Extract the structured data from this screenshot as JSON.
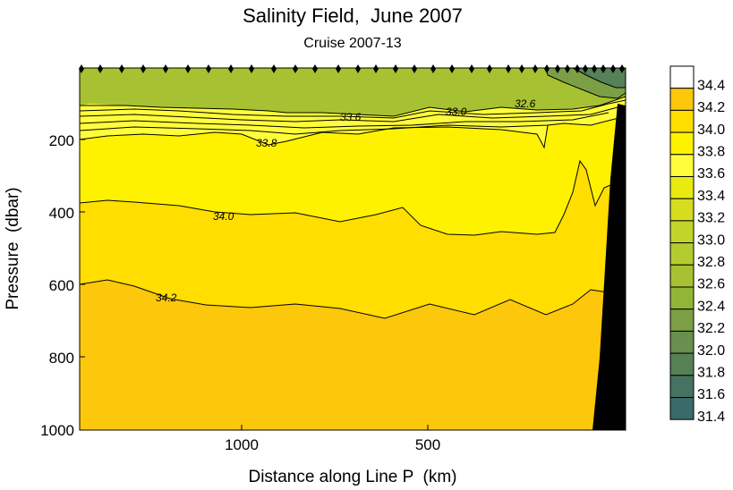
{
  "chart_data": {
    "type": "heatmap",
    "title": "Salinity Field,  June 2007",
    "subtitle": "Cruise 2007-13",
    "xlabel": "Distance along Line P  (km)",
    "ylabel": "Pressure  (dbar)",
    "x_ticks": [
      "1000",
      "500"
    ],
    "y_ticks": [
      "200",
      "400",
      "600",
      "800",
      "1000"
    ],
    "contour_labels": [
      "32.6",
      "33.0",
      "33.6",
      "33.8",
      "34.0",
      "34.2"
    ],
    "colorbar": {
      "levels": [
        "34.4",
        "34.2",
        "34.0",
        "33.8",
        "33.6",
        "33.4",
        "33.2",
        "33.0",
        "32.8",
        "32.6",
        "32.4",
        "32.2",
        "32.0",
        "31.8",
        "31.6",
        "31.4"
      ],
      "colors": [
        "#ffffff",
        "#fdc70c",
        "#ffde00",
        "#fff200",
        "#fffd3a",
        "#e8ea10",
        "#d5dd1e",
        "#c3d428",
        "#b5cc30",
        "#a6c232",
        "#93b537",
        "#7c9f45",
        "#688f4d",
        "#568157",
        "#467261",
        "#3a6a6a"
      ]
    },
    "field_colors": {
      "s_34_2_up": "#fdc70c",
      "s_34_0": "#ffde00",
      "s_33_8": "#fff200",
      "s_33_6": "#fffd3a",
      "surface": "#a6c232",
      "surface_low": "#7c9f45",
      "surface_lowest": "#568157",
      "land": "#000000"
    }
  }
}
